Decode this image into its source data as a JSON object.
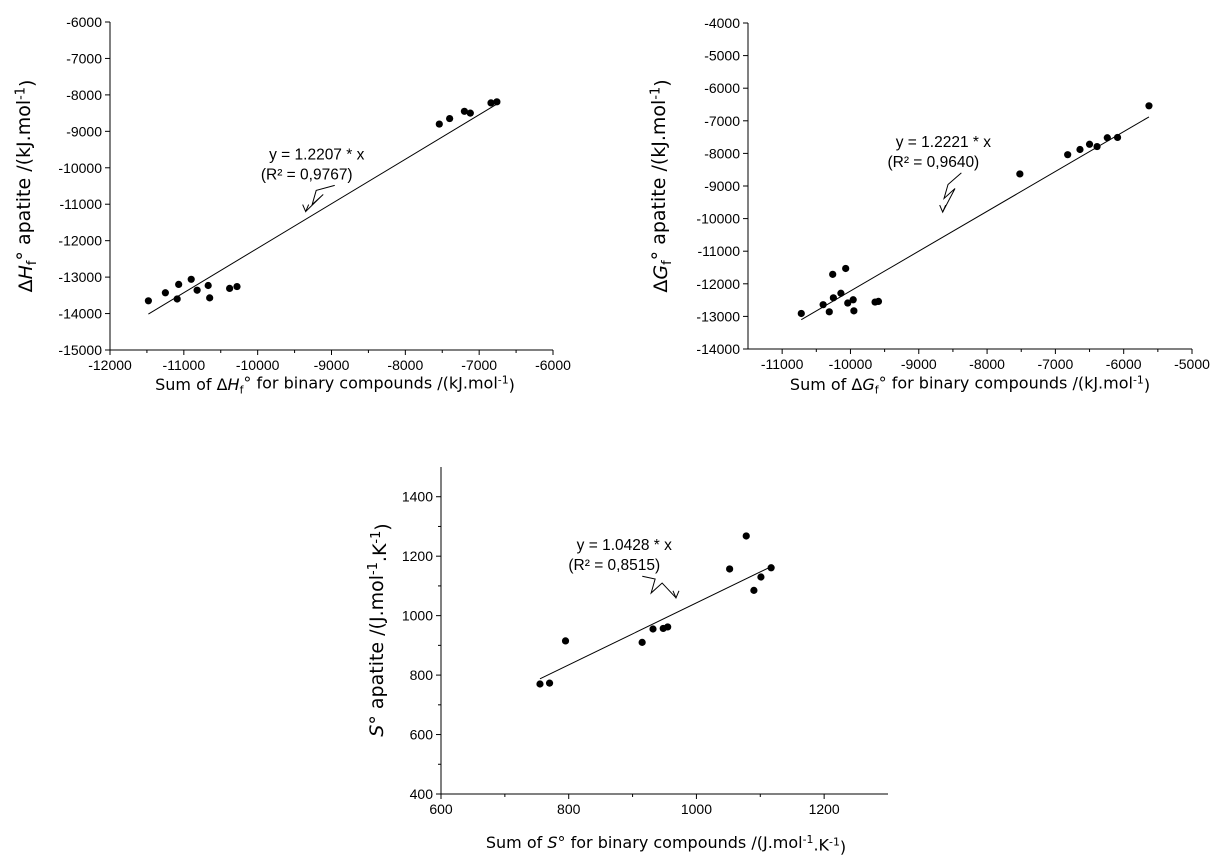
{
  "chart_data": [
    {
      "type": "scatter",
      "id": "enthalpy",
      "xlabel": {
        "prefix": "Sum of ",
        "symbol": "ΔH",
        "sub": "f",
        "after": "° for binary  compounds /(kJ.mol",
        "sup": "-1",
        "end": ")"
      },
      "ylabel": {
        "symbol": "ΔH",
        "sub": "f",
        "after": "° apatite /(kJ.mol",
        "sup": "-1",
        "end": ")"
      },
      "xlim": [
        -12000,
        -6000
      ],
      "ylim": [
        -15000,
        -6000
      ],
      "xticks": [
        -12000,
        -11000,
        -10000,
        -9000,
        -8000,
        -7000,
        -6000
      ],
      "yticks": [
        -15000,
        -14000,
        -13000,
        -12000,
        -11000,
        -10000,
        -9000,
        -8000,
        -7000,
        -6000
      ],
      "x_minor": true,
      "series": [
        {
          "points": [
            [
              -11480,
              -13650
            ],
            [
              -11250,
              -13430
            ],
            [
              -11090,
              -13600
            ],
            [
              -11070,
              -13200
            ],
            [
              -10900,
              -13060
            ],
            [
              -10820,
              -13360
            ],
            [
              -10670,
              -13230
            ],
            [
              -10650,
              -13570
            ],
            [
              -10380,
              -13310
            ],
            [
              -10280,
              -13260
            ],
            [
              -7540,
              -8800
            ],
            [
              -7400,
              -8650
            ],
            [
              -7200,
              -8450
            ],
            [
              -7120,
              -8500
            ],
            [
              -6840,
              -8220
            ],
            [
              -6760,
              -8190
            ]
          ]
        }
      ],
      "fit": {
        "slope": 1.2207,
        "x_range": [
          -11480,
          -6760
        ]
      },
      "annotation": {
        "equation": "y = 1.2207 * x",
        "r2": "(R² = 0,9767)",
        "text_at": [
          -9200,
          -9770
        ],
        "arrow_tip": [
          -9350,
          -11200
        ]
      }
    },
    {
      "type": "scatter",
      "id": "gibbs",
      "xlabel": {
        "prefix": "Sum of ",
        "symbol": "ΔG",
        "sub": "f",
        "after": "° for binary  compounds /(kJ.mol",
        "sup": "-1",
        "end": ")"
      },
      "ylabel": {
        "symbol": "ΔG",
        "sub": "f",
        "after": "° apatite /(kJ.mol",
        "sup": "-1",
        "end": ")"
      },
      "xlim": [
        -11500,
        -5000
      ],
      "ylim": [
        -14000,
        -4000
      ],
      "xticks": [
        -11000,
        -10000,
        -9000,
        -8000,
        -7000,
        -6000,
        -5000
      ],
      "yticks": [
        -14000,
        -13000,
        -12000,
        -11000,
        -10000,
        -9000,
        -8000,
        -7000,
        -6000,
        -5000,
        -4000
      ],
      "x_minor": true,
      "series": [
        {
          "points": [
            [
              -10720,
              -12910
            ],
            [
              -10400,
              -12640
            ],
            [
              -10310,
              -12860
            ],
            [
              -10260,
              -11710
            ],
            [
              -10250,
              -12430
            ],
            [
              -10140,
              -12290
            ],
            [
              -10070,
              -11530
            ],
            [
              -10040,
              -12590
            ],
            [
              -9960,
              -12490
            ],
            [
              -9950,
              -12830
            ],
            [
              -9640,
              -12560
            ],
            [
              -9590,
              -12540
            ],
            [
              -7520,
              -8630
            ],
            [
              -6820,
              -8040
            ],
            [
              -6640,
              -7880
            ],
            [
              -6500,
              -7720
            ],
            [
              -6390,
              -7790
            ],
            [
              -6240,
              -7520
            ],
            [
              -6090,
              -7510
            ],
            [
              -5630,
              -6540
            ]
          ]
        }
      ],
      "fit": {
        "slope": 1.2221,
        "x_range": [
          -10720,
          -5630
        ]
      },
      "annotation": {
        "equation": "y = 1.2221 * x",
        "r2": "(R² = 0,9640)",
        "text_at": [
          -8640,
          -7800
        ],
        "arrow_tip": [
          -8650,
          -9800
        ]
      }
    },
    {
      "type": "scatter",
      "id": "entropy",
      "xlabel": {
        "prefix": "Sum of ",
        "symbol": "S",
        "sub": "",
        "after": "° for binary  compounds /(J.mol",
        "sup": "-1",
        "end": ".K",
        "sup2": "-1",
        "end2": ")"
      },
      "ylabel": {
        "symbol": "S",
        "sub": "",
        "after": "° apatite /(J.mol",
        "sup": "-1",
        "end": ".K",
        "sup2": "-1",
        "end2": ")"
      },
      "xlim": [
        600,
        1300
      ],
      "ylim": [
        400,
        1500
      ],
      "xticks": [
        600,
        800,
        1000,
        1200
      ],
      "yticks": [
        400,
        600,
        800,
        1000,
        1200,
        1400
      ],
      "x_minor": true,
      "y_minor": true,
      "series": [
        {
          "points": [
            [
              755,
              770
            ],
            [
              770,
              773
            ],
            [
              795,
              915
            ],
            [
              915,
              910
            ],
            [
              932,
              955
            ],
            [
              948,
              957
            ],
            [
              955,
              962
            ],
            [
              1052,
              1157
            ],
            [
              1078,
              1268
            ],
            [
              1090,
              1085
            ],
            [
              1101,
              1130
            ],
            [
              1117,
              1161
            ]
          ]
        }
      ],
      "fit": {
        "slope": 1.0428,
        "x_range": [
          755,
          1117
        ]
      },
      "annotation": {
        "equation": "y = 1.0428 * x",
        "r2": "(R² = 0,8515)",
        "text_at": [
          887,
          1220
        ],
        "arrow_tip": [
          968,
          1060
        ]
      }
    }
  ]
}
